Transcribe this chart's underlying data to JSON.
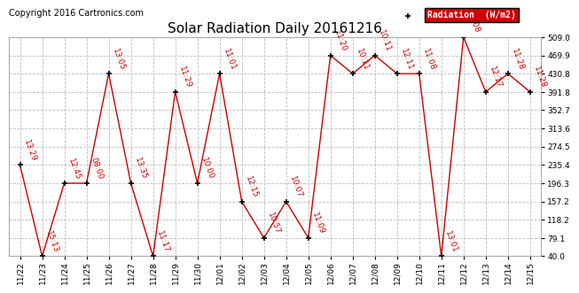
{
  "title": "Solar Radiation Daily 20161216",
  "copyright": "Copyright 2016 Cartronics.com",
  "legend_label": "Radiation  (W/m2)",
  "x_labels": [
    "11/22",
    "11/23",
    "11/24",
    "11/25",
    "11/26",
    "11/27",
    "11/28",
    "11/29",
    "11/30",
    "12/01",
    "12/02",
    "12/03",
    "12/04",
    "12/05",
    "12/06",
    "12/07",
    "12/08",
    "12/09",
    "12/10",
    "12/11",
    "12/12",
    "12/13",
    "12/14",
    "12/15"
  ],
  "y_values": [
    235.4,
    40.0,
    196.3,
    196.3,
    430.8,
    196.3,
    40.0,
    391.8,
    196.3,
    430.8,
    157.2,
    79.1,
    157.2,
    79.1,
    469.9,
    430.8,
    469.9,
    430.8,
    430.8,
    40.0,
    509.0,
    391.8,
    430.8,
    391.8
  ],
  "point_labels": [
    "13:29",
    "15:13",
    "12:45",
    "08:00",
    "13:05",
    "13:35",
    "11:17",
    "11:29",
    "10:00",
    "11:01",
    "12:15",
    "10:57",
    "10:07",
    "11:09",
    "11:20",
    "10:11",
    "10:11",
    "12:11",
    "11:08",
    "13:01",
    "11:08",
    "12:17",
    "11:28",
    "11:28"
  ],
  "line_color": "#cc0000",
  "marker_color": "#000000",
  "background_color": "#ffffff",
  "grid_color": "#bbbbbb",
  "ylim": [
    40.0,
    509.0
  ],
  "yticks": [
    40.0,
    79.1,
    118.2,
    157.2,
    196.3,
    235.4,
    274.5,
    313.6,
    352.7,
    391.8,
    430.8,
    469.9,
    509.0
  ],
  "legend_bg": "#cc0000",
  "legend_text_color": "#ffffff",
  "title_fontsize": 11,
  "label_fontsize": 6.5,
  "annotation_fontsize": 6.5,
  "copyright_fontsize": 7
}
